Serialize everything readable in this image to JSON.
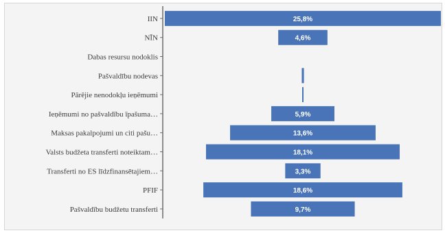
{
  "colors": {
    "bar": "#4a74b8",
    "axis": "#6b6b6b",
    "label": "#3a3a3a",
    "value_text": "#ffffff",
    "background": "#f4f4f4"
  },
  "chart_data": {
    "type": "bar",
    "orientation": "horizontal",
    "layout": "centered-funnel",
    "categories": [
      "IIN",
      "NĪN",
      "Dabas resursu nodoklis",
      "Pašvaldību nodevas",
      "Pārējie nenodokļu ieņēmumi",
      "Ieņēmumi no pašvaldību īpašuma…",
      "Maksas pakalpojumi un citi pašu…",
      "Valsts budžeta transferti noteiktam…",
      "Transferti no ES līdzfinansētajiem…",
      "PFIF",
      "Pašvaldību budžetu transferti"
    ],
    "values": [
      25.8,
      4.6,
      0,
      0.2,
      0.1,
      5.9,
      13.6,
      18.1,
      3.3,
      18.6,
      9.7
    ],
    "value_labels": [
      "25,8%",
      "4,6%",
      "",
      "",
      "",
      "5,9%",
      "13,6%",
      "18,1%",
      "3,3%",
      "18,6%",
      "9,7%"
    ],
    "unit": "%",
    "title": "",
    "xlabel": "",
    "ylabel": "",
    "grid": false,
    "legend": "none"
  }
}
